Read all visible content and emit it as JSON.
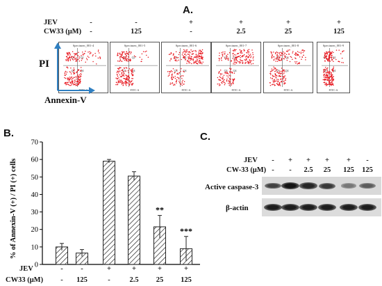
{
  "panel_a": {
    "label": "A.",
    "row_labels": {
      "jev": "JEV",
      "cw33": "CW33 (μM)"
    },
    "columns": [
      {
        "jev": "-",
        "cw33": "-",
        "specimen": "Specimen_001-4",
        "q_labels": [
          "Q1",
          "Q2",
          "Q3",
          "Q4"
        ],
        "x_label": "FITC-A",
        "fraction_apoptotic": 0.1
      },
      {
        "jev": "-",
        "cw33": "125",
        "specimen": "Specimen_001-5",
        "q_labels": [
          "Q1",
          "Q2",
          "Q3",
          "Q4"
        ],
        "x_label": "FITC-A",
        "fraction_apoptotic": 0.06
      },
      {
        "jev": "+",
        "cw33": "-",
        "specimen": "Specimen_001-6",
        "q_labels": [
          "Q1",
          "Q2",
          "Q3",
          "Q4"
        ],
        "x_label": "FITC-A",
        "fraction_apoptotic": 0.59
      },
      {
        "jev": "+",
        "cw33": "2.5",
        "specimen": "Specimen_001-7",
        "q_labels": [
          "Q1",
          "Q2",
          "Q3",
          "Q4"
        ],
        "x_label": "FITC-A",
        "fraction_apoptotic": 0.5
      },
      {
        "jev": "+",
        "cw33": "25",
        "specimen": "Specimen_001-8",
        "q_labels": [
          "Q1",
          "Q2",
          "Q3",
          "Q4"
        ],
        "x_label": "FITC-A",
        "fraction_apoptotic": 0.21
      },
      {
        "jev": "+",
        "cw33": "125",
        "specimen": "Specimen_001-9",
        "q_labels": [
          "Q1",
          "Q2",
          "Q3",
          "Q4"
        ],
        "x_label": "FITC-A",
        "fraction_apoptotic": 0.09
      }
    ],
    "axis_y": "PI",
    "axis_x": "Annexin-V",
    "dot_color": "#e8141c",
    "arrow_color": "#2f7fc1"
  },
  "panel_b": {
    "label": "B.",
    "row_labels": {
      "jev": "JEV",
      "cw33": "CW33 (μM)"
    },
    "column_labels": [
      {
        "jev": "-",
        "cw33": "-"
      },
      {
        "jev": "-",
        "cw33": "125"
      },
      {
        "jev": "+",
        "cw33": "-"
      },
      {
        "jev": "+",
        "cw33": "2.5"
      },
      {
        "jev": "+",
        "cw33": "25"
      },
      {
        "jev": "+",
        "cw33": "125"
      }
    ]
  },
  "chart_data": {
    "type": "bar",
    "categories": [
      "-/-",
      "-/125",
      "+/-",
      "+/2.5",
      "+/25",
      "+/125"
    ],
    "values": [
      10,
      6.5,
      59,
      50.5,
      21.5,
      9
    ],
    "errors": [
      2,
      2,
      1,
      2.5,
      6.5,
      7
    ],
    "significance": [
      "",
      "",
      "",
      "",
      "**",
      "***"
    ],
    "ylabel": "% of Annexin-V (+) / PI (+) cells",
    "ylim": [
      0,
      70
    ],
    "yticks": [
      0,
      10,
      20,
      30,
      40,
      50,
      60,
      70
    ],
    "pattern": "diagonal-hatch",
    "bar_color": "#ffffff",
    "hatch_color": "#222222"
  },
  "panel_c": {
    "label": "C.",
    "row_labels": {
      "jev": "JEV",
      "cw33": "CW-33 (μM)"
    },
    "columns": [
      {
        "jev": "-",
        "cw33": "-"
      },
      {
        "jev": "+",
        "cw33": "-"
      },
      {
        "jev": "+",
        "cw33": "2.5"
      },
      {
        "jev": "+",
        "cw33": "25"
      },
      {
        "jev": "+",
        "cw33": "125"
      },
      {
        "jev": "-",
        "cw33": "125"
      }
    ],
    "blots": [
      {
        "name": "Active caspase-3",
        "intensity": [
          0.75,
          1.0,
          0.9,
          0.8,
          0.45,
          0.6
        ]
      },
      {
        "name": "β-actin",
        "intensity": [
          0.95,
          0.95,
          0.95,
          0.95,
          0.95,
          0.95
        ]
      }
    ]
  }
}
